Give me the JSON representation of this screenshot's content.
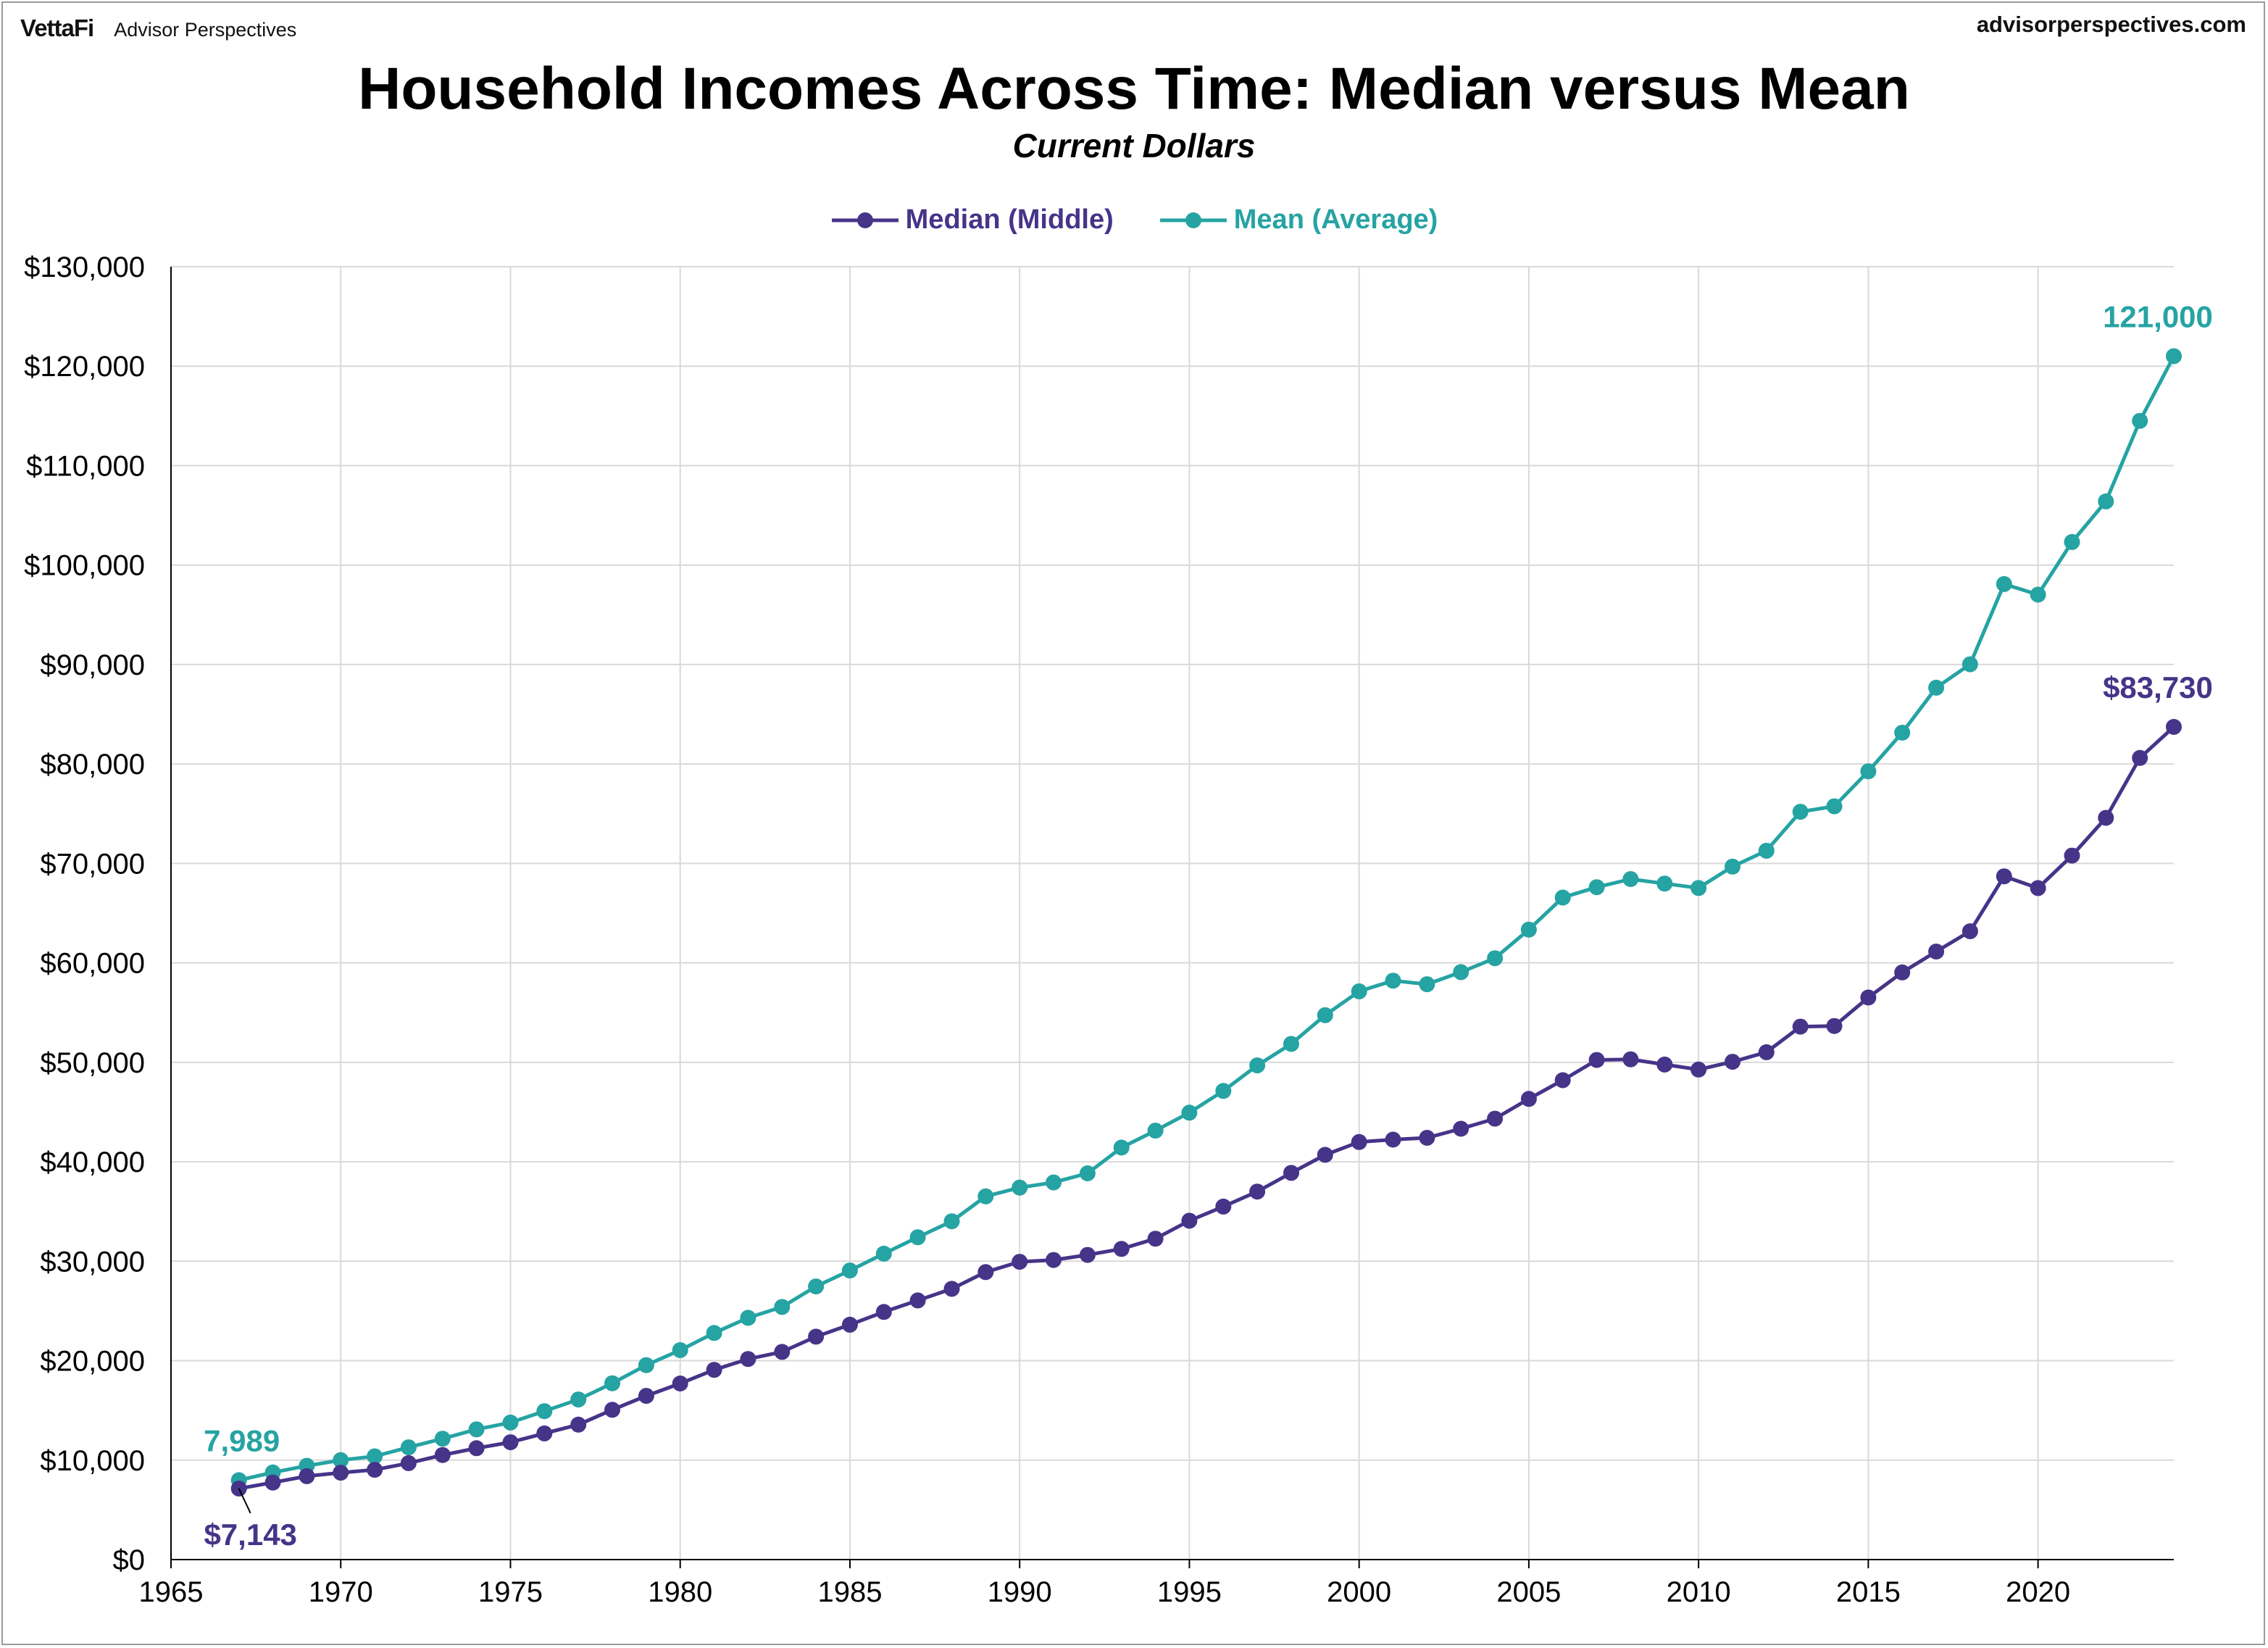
{
  "header": {
    "brand": "VettaFi",
    "brand_sub": "Advisor Perspectives",
    "site": "advisorperspectives.com"
  },
  "colors": {
    "median": "#463489",
    "mean": "#26a3a3",
    "grid": "#d9d9d9"
  },
  "chart_data": {
    "type": "line",
    "title": "Household Incomes Across Time: Median versus Mean",
    "subtitle": "Current Dollars",
    "xlabel": "",
    "ylabel": "",
    "xlim": [
      1965,
      2024
    ],
    "ylim": [
      0,
      130000
    ],
    "x_ticks": [
      1965,
      1970,
      1975,
      1980,
      1985,
      1990,
      1995,
      2000,
      2005,
      2010,
      2015,
      2020
    ],
    "y_ticks": [
      0,
      10000,
      20000,
      30000,
      40000,
      50000,
      60000,
      70000,
      80000,
      90000,
      100000,
      110000,
      120000,
      130000
    ],
    "y_tick_labels": [
      "$0",
      "$10,000",
      "$20,000",
      "$30,000",
      "$40,000",
      "$50,000",
      "$60,000",
      "$70,000",
      "$80,000",
      "$90,000",
      "$100,000",
      "$110,000",
      "$120,000",
      "$130,000"
    ],
    "grid": true,
    "legend_position": "top-center",
    "x": [
      1967,
      1968,
      1969,
      1970,
      1971,
      1972,
      1973,
      1974,
      1975,
      1976,
      1977,
      1978,
      1979,
      1980,
      1981,
      1982,
      1983,
      1984,
      1985,
      1986,
      1987,
      1988,
      1989,
      1990,
      1991,
      1992,
      1993,
      1994,
      1995,
      1996,
      1997,
      1998,
      1999,
      2000,
      2001,
      2002,
      2003,
      2004,
      2005,
      2006,
      2007,
      2008,
      2009,
      2010,
      2011,
      2012,
      2013,
      2014,
      2015,
      2016,
      2017,
      2018,
      2019,
      2020,
      2021,
      2022,
      2023,
      2024
    ],
    "series": [
      {
        "name": "Median (Middle)",
        "color_key": "median",
        "values": [
          7143,
          7743,
          8389,
          8734,
          9028,
          9697,
          10512,
          11197,
          11800,
          12686,
          13572,
          15064,
          16461,
          17710,
          19074,
          20171,
          20885,
          22415,
          23618,
          24897,
          26061,
          27225,
          28906,
          29943,
          30126,
          30636,
          31241,
          32264,
          34076,
          35492,
          37005,
          38885,
          40696,
          41990,
          42228,
          42409,
          43318,
          44334,
          46326,
          48201,
          50233,
          50303,
          49777,
          49276,
          50054,
          51017,
          53585,
          53657,
          56516,
          59039,
          61136,
          63179,
          68703,
          67521,
          70784,
          74580,
          80610,
          83730
        ]
      },
      {
        "name": "Mean (Average)",
        "color_key": "mean",
        "values": [
          7989,
          8760,
          9433,
          10001,
          10383,
          11286,
          12157,
          13094,
          13779,
          14921,
          16100,
          17730,
          19554,
          21063,
          22787,
          24309,
          25401,
          27464,
          29066,
          30759,
          32410,
          34017,
          36520,
          37403,
          37922,
          38840,
          41428,
          43133,
          44938,
          47123,
          49692,
          51855,
          54737,
          57135,
          58208,
          57852,
          59067,
          60466,
          63344,
          66570,
          67609,
          68424,
          67976,
          67530,
          69677,
          71274,
          75195,
          75738,
          79263,
          83143,
          87668,
          90021,
          98088,
          97026,
          102316,
          106400,
          114500,
          121000
        ]
      }
    ],
    "data_labels": [
      {
        "series": "Mean (Average)",
        "x": 1967,
        "text": "7,989"
      },
      {
        "series": "Median (Middle)",
        "x": 1967,
        "text": "$7,143"
      },
      {
        "series": "Mean (Average)",
        "x": 2024,
        "text": "121,000"
      },
      {
        "series": "Median (Middle)",
        "x": 2024,
        "text": "$83,730"
      }
    ]
  }
}
